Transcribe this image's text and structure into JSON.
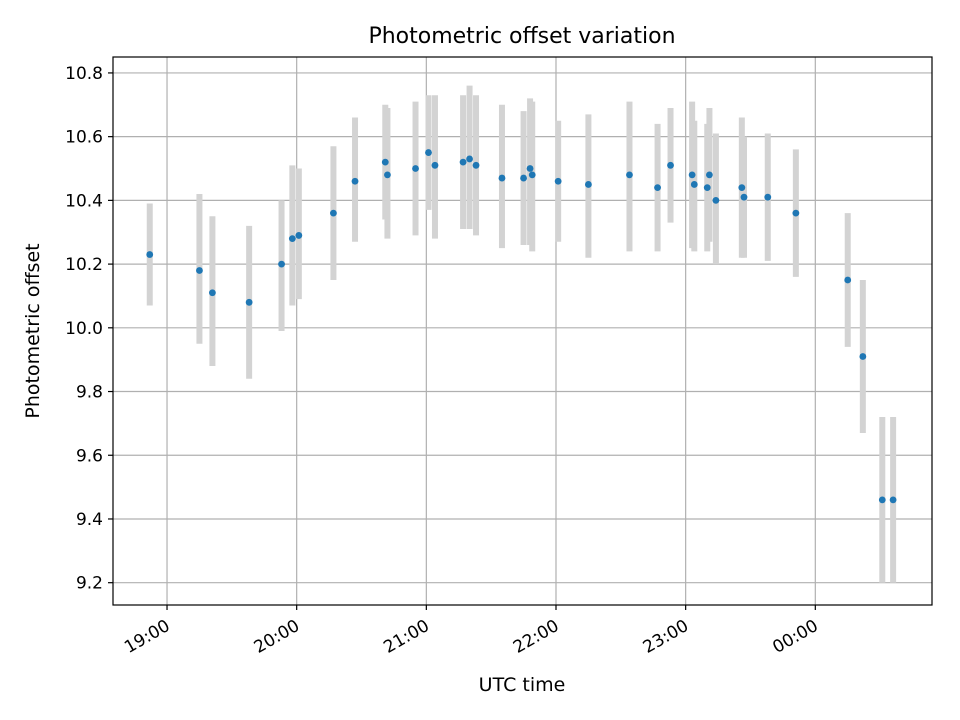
{
  "chart_data": {
    "type": "scatter",
    "title": "Photometric offset variation",
    "xlabel": "UTC time",
    "ylabel": "Photometric offset",
    "x_ticks": [
      "19:00",
      "20:00",
      "21:00",
      "22:00",
      "23:00",
      "00:00"
    ],
    "y_ticks": [
      "9.2",
      "9.4",
      "9.6",
      "9.8",
      "10.0",
      "10.2",
      "10.4",
      "10.6",
      "10.8"
    ],
    "xlim": [
      "2000-01-01T18:35",
      "2000-01-02T00:54"
    ],
    "ylim": [
      9.13,
      10.85
    ],
    "grid": true,
    "legend": "none",
    "series": [
      {
        "points": [
          {
            "x": "18:52",
            "y": 10.23,
            "err_low": 10.07,
            "err_high": 10.39
          },
          {
            "x": "19:15",
            "y": 10.18,
            "err_low": 9.95,
            "err_high": 10.42
          },
          {
            "x": "19:21",
            "y": 10.11,
            "err_low": 9.88,
            "err_high": 10.35
          },
          {
            "x": "19:38",
            "y": 10.08,
            "err_low": 9.84,
            "err_high": 10.32
          },
          {
            "x": "19:53",
            "y": 10.2,
            "err_low": 9.99,
            "err_high": 10.4
          },
          {
            "x": "19:58",
            "y": 10.28,
            "err_low": 10.07,
            "err_high": 10.51
          },
          {
            "x": "20:01",
            "y": 10.29,
            "err_low": 10.09,
            "err_high": 10.5
          },
          {
            "x": "20:17",
            "y": 10.36,
            "err_low": 10.15,
            "err_high": 10.57
          },
          {
            "x": "20:27",
            "y": 10.46,
            "err_low": 10.27,
            "err_high": 10.66
          },
          {
            "x": "20:41",
            "y": 10.52,
            "err_low": 10.34,
            "err_high": 10.7
          },
          {
            "x": "20:42",
            "y": 10.48,
            "err_low": 10.28,
            "err_high": 10.69
          },
          {
            "x": "20:55",
            "y": 10.5,
            "err_low": 10.29,
            "err_high": 10.71
          },
          {
            "x": "21:01",
            "y": 10.55,
            "err_low": 10.37,
            "err_high": 10.73
          },
          {
            "x": "21:04",
            "y": 10.51,
            "err_low": 10.28,
            "err_high": 10.73
          },
          {
            "x": "21:17",
            "y": 10.52,
            "err_low": 10.31,
            "err_high": 10.73
          },
          {
            "x": "21:20",
            "y": 10.53,
            "err_low": 10.31,
            "err_high": 10.76
          },
          {
            "x": "21:23",
            "y": 10.51,
            "err_low": 10.29,
            "err_high": 10.73
          },
          {
            "x": "21:35",
            "y": 10.47,
            "err_low": 10.25,
            "err_high": 10.7
          },
          {
            "x": "21:45",
            "y": 10.47,
            "err_low": 10.26,
            "err_high": 10.68
          },
          {
            "x": "21:48",
            "y": 10.5,
            "err_low": 10.26,
            "err_high": 10.72
          },
          {
            "x": "21:49",
            "y": 10.48,
            "err_low": 10.24,
            "err_high": 10.71
          },
          {
            "x": "22:01",
            "y": 10.46,
            "err_low": 10.27,
            "err_high": 10.65
          },
          {
            "x": "22:15",
            "y": 10.45,
            "err_low": 10.22,
            "err_high": 10.67
          },
          {
            "x": "22:34",
            "y": 10.48,
            "err_low": 10.24,
            "err_high": 10.71
          },
          {
            "x": "22:47",
            "y": 10.44,
            "err_low": 10.24,
            "err_high": 10.64
          },
          {
            "x": "22:53",
            "y": 10.51,
            "err_low": 10.33,
            "err_high": 10.69
          },
          {
            "x": "23:03",
            "y": 10.48,
            "err_low": 10.25,
            "err_high": 10.71
          },
          {
            "x": "23:04",
            "y": 10.45,
            "err_low": 10.24,
            "err_high": 10.65
          },
          {
            "x": "23:10",
            "y": 10.44,
            "err_low": 10.24,
            "err_high": 10.64
          },
          {
            "x": "23:11",
            "y": 10.48,
            "err_low": 10.27,
            "err_high": 10.69
          },
          {
            "x": "23:14",
            "y": 10.4,
            "err_low": 10.2,
            "err_high": 10.61
          },
          {
            "x": "23:26",
            "y": 10.44,
            "err_low": 10.22,
            "err_high": 10.66
          },
          {
            "x": "23:27",
            "y": 10.41,
            "err_low": 10.22,
            "err_high": 10.6
          },
          {
            "x": "23:38",
            "y": 10.41,
            "err_low": 10.21,
            "err_high": 10.61
          },
          {
            "x": "23:51",
            "y": 10.36,
            "err_low": 10.16,
            "err_high": 10.56
          },
          {
            "x": "00:15",
            "y": 10.15,
            "err_low": 9.94,
            "err_high": 10.36
          },
          {
            "x": "00:22",
            "y": 9.91,
            "err_low": 9.67,
            "err_high": 10.15
          },
          {
            "x": "00:31",
            "y": 9.46,
            "err_low": 9.2,
            "err_high": 9.72
          },
          {
            "x": "00:36",
            "y": 9.46,
            "err_low": 9.2,
            "err_high": 9.72
          }
        ]
      }
    ]
  },
  "colors": {
    "marker": "#1f77b4",
    "errorbar": "#d3d3d3",
    "grid": "#b0b0b0",
    "axes": "#000000"
  }
}
